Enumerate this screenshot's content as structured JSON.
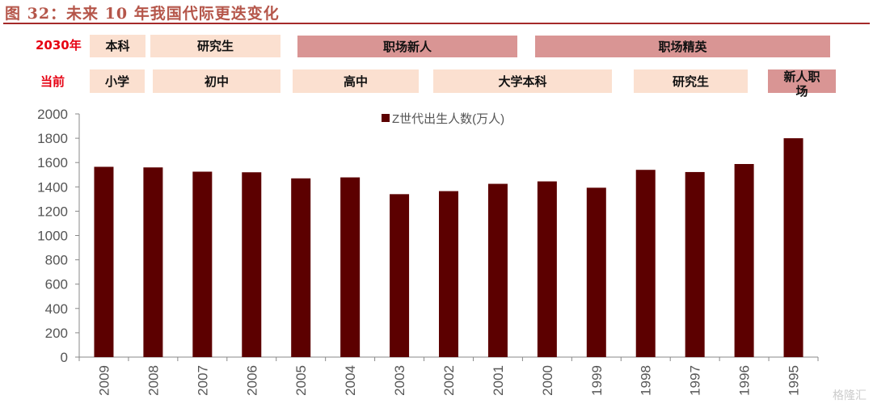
{
  "title": "图 32：未来 10 年我国代际更迭变化",
  "timeline": {
    "row_2030_label": "2030年",
    "row_current_label": "当前",
    "row_2030": [
      {
        "label": "本科",
        "tone": "light"
      },
      {
        "label": "研究生",
        "tone": "light"
      },
      {
        "label": "职场新人",
        "tone": "dark"
      },
      {
        "label": "职场精英",
        "tone": "dark"
      }
    ],
    "row_current": [
      {
        "label": "小学",
        "tone": "light"
      },
      {
        "label": "初中",
        "tone": "light"
      },
      {
        "label": "高中",
        "tone": "light"
      },
      {
        "label": "大学本科",
        "tone": "light"
      },
      {
        "label": "研究生",
        "tone": "light"
      },
      {
        "label": "新人职场",
        "tone": "dark"
      }
    ],
    "colors": {
      "light": "#fbe0d0",
      "dark": "#d99594",
      "label": "#e60012"
    }
  },
  "watermark": "格隆汇",
  "chart_data": {
    "type": "bar",
    "categories": [
      "2009",
      "2008",
      "2007",
      "2006",
      "2005",
      "2004",
      "2003",
      "2002",
      "2001",
      "2000",
      "1999",
      "1998",
      "1997",
      "1996",
      "1995"
    ],
    "series": [
      {
        "name": "Z世代出生人数(万人)",
        "values": [
          1565,
          1560,
          1525,
          1520,
          1470,
          1478,
          1340,
          1365,
          1425,
          1445,
          1393,
          1540,
          1522,
          1588,
          1800
        ],
        "color": "#5c0000"
      }
    ],
    "ylim": [
      0,
      2000
    ],
    "yticks": [
      0,
      200,
      400,
      600,
      800,
      1000,
      1200,
      1400,
      1600,
      1800,
      2000
    ],
    "grid": false,
    "legend": "top-center"
  }
}
